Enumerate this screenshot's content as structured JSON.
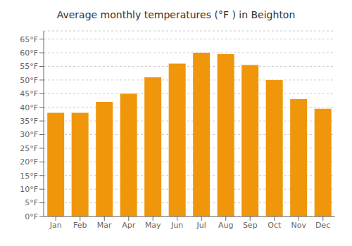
{
  "chart_data": {
    "type": "bar",
    "title": "Average monthly temperatures (°F ) in Beighton",
    "categories": [
      "Jan",
      "Feb",
      "Mar",
      "Apr",
      "May",
      "Jun",
      "Jul",
      "Aug",
      "Sep",
      "Oct",
      "Nov",
      "Dec"
    ],
    "values": [
      38,
      38,
      42,
      45,
      51,
      56,
      60,
      59.5,
      55.5,
      50,
      43,
      39.5
    ],
    "color": "#F0960A",
    "ylim": [
      0,
      68
    ],
    "yticks": [
      {
        "value": 0,
        "label": "0°F"
      },
      {
        "value": 5,
        "label": "5°F"
      },
      {
        "value": 10,
        "label": "10°F"
      },
      {
        "value": 15,
        "label": "15°F"
      },
      {
        "value": 20,
        "label": "20°F"
      },
      {
        "value": 25,
        "label": "25°F"
      },
      {
        "value": 30,
        "label": "30°F"
      },
      {
        "value": 35,
        "label": "35°F"
      },
      {
        "value": 40,
        "label": "40°F"
      },
      {
        "value": 45,
        "label": "45°F"
      },
      {
        "value": 50,
        "label": "50°F"
      },
      {
        "value": 55,
        "label": "55°F"
      },
      {
        "value": 60,
        "label": "60°F"
      },
      {
        "value": 65,
        "label": "65°F"
      }
    ],
    "grid": true
  }
}
